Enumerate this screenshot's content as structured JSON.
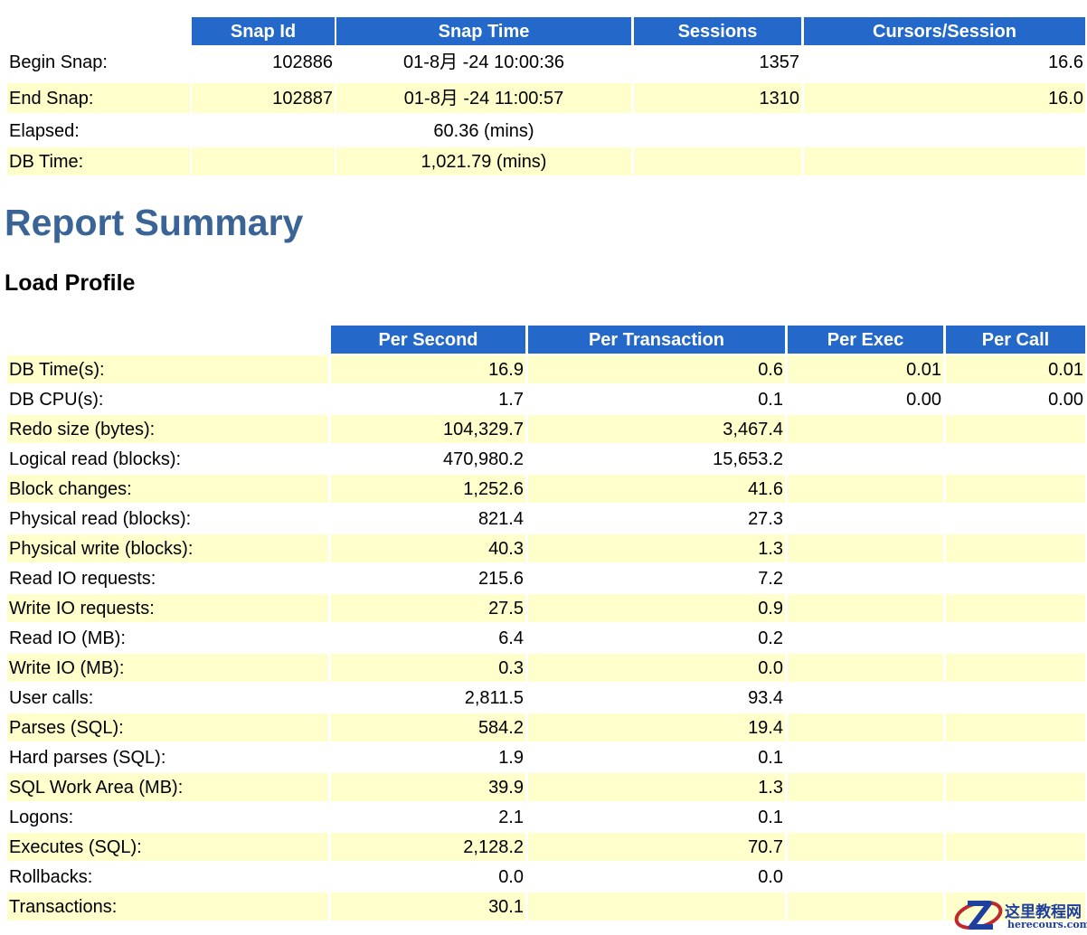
{
  "snapshot_table": {
    "headers": [
      "Snap Id",
      "Snap Time",
      "Sessions",
      "Cursors/Session"
    ],
    "rows": [
      [
        "Begin Snap:",
        "102886",
        "01-8月 -24 10:00:36",
        "1357",
        "16.6"
      ],
      [
        "End Snap:",
        "102887",
        "01-8月 -24 11:00:57",
        "1310",
        "16.0"
      ],
      [
        "Elapsed:",
        "",
        "60.36 (mins)",
        "",
        ""
      ],
      [
        "DB Time:",
        "",
        "1,021.79 (mins)",
        "",
        ""
      ]
    ]
  },
  "report_summary": {
    "title": "Report Summary"
  },
  "load_profile": {
    "title": "Load Profile",
    "headers": [
      "Per Second",
      "Per Transaction",
      "Per Exec",
      "Per Call"
    ],
    "rows": [
      [
        "DB Time(s):",
        "16.9",
        "0.6",
        "0.01",
        "0.01"
      ],
      [
        "DB CPU(s):",
        "1.7",
        "0.1",
        "0.00",
        "0.00"
      ],
      [
        "Redo size (bytes):",
        "104,329.7",
        "3,467.4",
        "",
        ""
      ],
      [
        "Logical read (blocks):",
        "470,980.2",
        "15,653.2",
        "",
        ""
      ],
      [
        "Block changes:",
        "1,252.6",
        "41.6",
        "",
        ""
      ],
      [
        "Physical read (blocks):",
        "821.4",
        "27.3",
        "",
        ""
      ],
      [
        "Physical write (blocks):",
        "40.3",
        "1.3",
        "",
        ""
      ],
      [
        "Read IO requests:",
        "215.6",
        "7.2",
        "",
        ""
      ],
      [
        "Write IO requests:",
        "27.5",
        "0.9",
        "",
        ""
      ],
      [
        "Read IO (MB):",
        "6.4",
        "0.2",
        "",
        ""
      ],
      [
        "Write IO (MB):",
        "0.3",
        "0.0",
        "",
        ""
      ],
      [
        "User calls:",
        "2,811.5",
        "93.4",
        "",
        ""
      ],
      [
        "Parses (SQL):",
        "584.2",
        "19.4",
        "",
        ""
      ],
      [
        "Hard parses (SQL):",
        "1.9",
        "0.1",
        "",
        ""
      ],
      [
        "SQL Work Area (MB):",
        "39.9",
        "1.3",
        "",
        ""
      ],
      [
        "Logons:",
        "2.1",
        "0.1",
        "",
        ""
      ],
      [
        "Executes (SQL):",
        "2,128.2",
        "70.7",
        "",
        ""
      ],
      [
        "Rollbacks:",
        "0.0",
        "0.0",
        "",
        ""
      ],
      [
        "Transactions:",
        "30.1",
        "",
        "",
        ""
      ]
    ]
  },
  "watermark": {
    "cn": "这里教程网",
    "en": "herecours.com"
  },
  "colors": {
    "header_bg": "#2469c9",
    "row_highlight": "#ffffcc",
    "title": "#3a6496"
  }
}
